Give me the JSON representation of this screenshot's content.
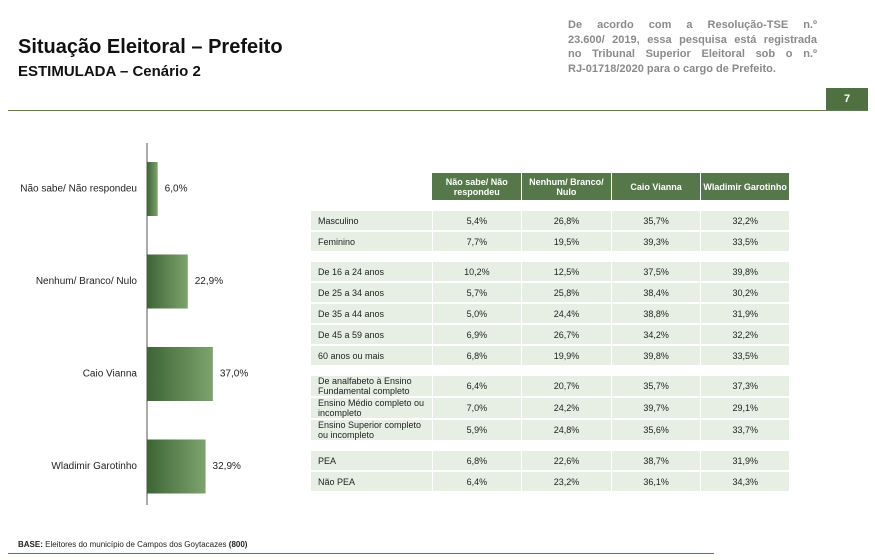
{
  "header": {
    "title": "Situação Eleitoral – Prefeito",
    "subtitle": "ESTIMULADA – Cenário 2",
    "note": [
      "De acordo com a Resolução-TSE n.º",
      "23.600/ 2019, essa pesquisa está registrada",
      "no Tribunal Superior Eleitoral sob o n.º",
      "RJ-01718/2020 para o cargo de Prefeito."
    ],
    "page": "7"
  },
  "chart_data": {
    "type": "bar",
    "orientation": "horizontal",
    "categories": [
      "Não sabe/ Não respondeu",
      "Nenhum/ Branco/ Nulo",
      "Caio Vianna",
      "Wladimir Garotinho"
    ],
    "values": [
      6.0,
      22.9,
      37.0,
      32.9
    ],
    "value_labels": [
      "6,0%",
      "22,9%",
      "37,0%",
      "32,9%"
    ],
    "color": "#4f7a45"
  },
  "table": {
    "columns": [
      "Não sabe/ Não respondeu",
      "Nenhum/ Branco/ Nulo",
      "Caio Vianna",
      "Wladimir Garotinho"
    ],
    "groups": [
      {
        "rows": [
          [
            "Masculino",
            "5,4%",
            "26,8%",
            "35,7%",
            "32,2%"
          ],
          [
            "Feminino",
            "7,7%",
            "19,5%",
            "39,3%",
            "33,5%"
          ]
        ]
      },
      {
        "rows": [
          [
            "De 16 a 24 anos",
            "10,2%",
            "12,5%",
            "37,5%",
            "39,8%"
          ],
          [
            "De 25 a 34 anos",
            "5,7%",
            "25,8%",
            "38,4%",
            "30,2%"
          ],
          [
            "De 35 a 44 anos",
            "5,0%",
            "24,4%",
            "38,8%",
            "31,9%"
          ],
          [
            "De 45 a 59 anos",
            "6,9%",
            "26,7%",
            "34,2%",
            "32,2%"
          ],
          [
            "60 anos ou mais",
            "6,8%",
            "19,9%",
            "39,8%",
            "33,5%"
          ]
        ]
      },
      {
        "rows": [
          [
            "De analfabeto à Ensino Fundamental completo",
            "6,4%",
            "20,7%",
            "35,7%",
            "37,3%"
          ],
          [
            "Ensino Médio completo ou incompleto",
            "7,0%",
            "24,2%",
            "39,7%",
            "29,1%"
          ],
          [
            "Ensino Superior completo ou incompleto",
            "5,9%",
            "24,8%",
            "35,6%",
            "33,7%"
          ]
        ]
      },
      {
        "rows": [
          [
            "PEA",
            "6,8%",
            "22,6%",
            "38,7%",
            "31,9%"
          ],
          [
            "Não PEA",
            "6,4%",
            "23,2%",
            "36,1%",
            "34,3%"
          ]
        ]
      }
    ]
  },
  "footer": {
    "label": "BASE:",
    "text": "Eleitores do município de Campos dos Goytacazes",
    "count": "(800)"
  }
}
